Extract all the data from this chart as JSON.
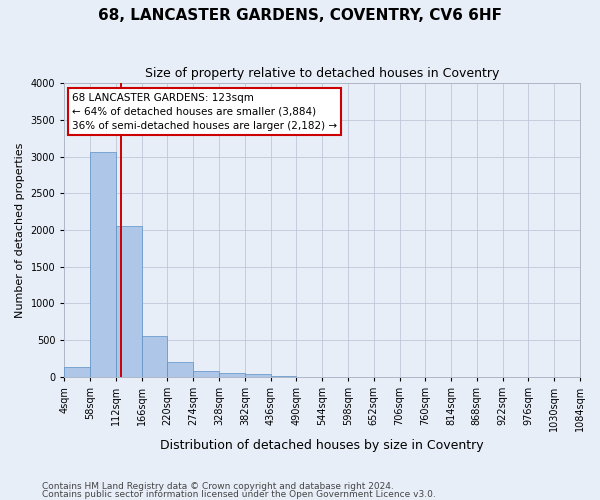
{
  "title": "68, LANCASTER GARDENS, COVENTRY, CV6 6HF",
  "subtitle": "Size of property relative to detached houses in Coventry",
  "xlabel": "Distribution of detached houses by size in Coventry",
  "ylabel": "Number of detached properties",
  "bar_values": [
    130,
    3060,
    2060,
    560,
    200,
    75,
    55,
    35,
    10,
    5,
    2,
    1,
    0,
    0,
    0,
    0,
    0,
    0,
    0,
    0
  ],
  "bin_edges": [
    4,
    58,
    112,
    166,
    220,
    274,
    328,
    382,
    436,
    490,
    544,
    598,
    652,
    706,
    760,
    814,
    868,
    922,
    976,
    1030,
    1084
  ],
  "bar_color": "#aec6e8",
  "bar_edgecolor": "#5a8fc4",
  "grid_color": "#c0c8d8",
  "background_color": "#e8eef8",
  "ylim": [
    0,
    4000
  ],
  "yticks": [
    0,
    500,
    1000,
    1500,
    2000,
    2500,
    3000,
    3500,
    4000
  ],
  "property_size": 123,
  "red_line_color": "#cc0000",
  "annotation_line1": "68 LANCASTER GARDENS: 123sqm",
  "annotation_line2": "← 64% of detached houses are smaller (3,884)",
  "annotation_line3": "36% of semi-detached houses are larger (2,182) →",
  "annotation_box_edgecolor": "#cc0000",
  "footnote1": "Contains HM Land Registry data © Crown copyright and database right 2024.",
  "footnote2": "Contains public sector information licensed under the Open Government Licence v3.0.",
  "title_fontsize": 11,
  "subtitle_fontsize": 9,
  "xlabel_fontsize": 9,
  "ylabel_fontsize": 8,
  "tick_fontsize": 7,
  "annotation_fontsize": 7.5,
  "footnote_fontsize": 6.5
}
